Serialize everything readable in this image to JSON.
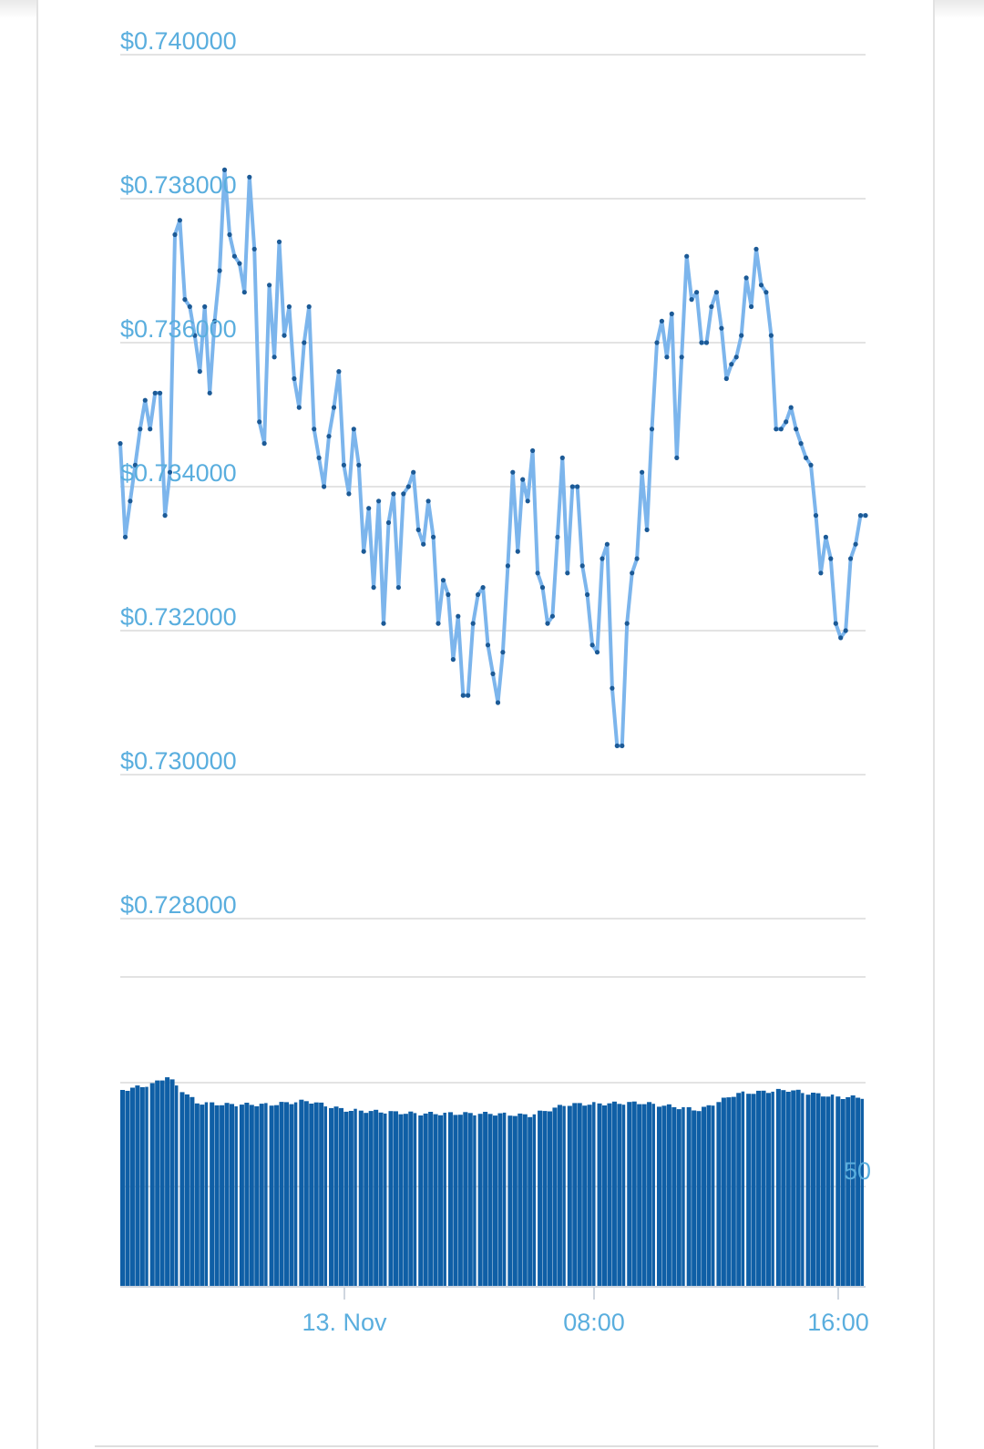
{
  "chart_data": [
    {
      "type": "line",
      "yticks": [
        "$0.740000",
        "$0.738000",
        "$0.736000",
        "$0.734000",
        "$0.732000",
        "$0.730000",
        "$0.728000"
      ],
      "ylim": [
        0.728,
        0.74
      ],
      "grid": true,
      "series": [
        {
          "values": [
            0.7346,
            0.7333,
            0.7338,
            0.7343,
            0.7348,
            0.7352,
            0.7348,
            0.7353,
            0.7353,
            0.7336,
            0.7342,
            0.7375,
            0.7377,
            0.7366,
            0.7365,
            0.7361,
            0.7356,
            0.7365,
            0.7353,
            0.7363,
            0.737,
            0.7384,
            0.7375,
            0.7372,
            0.7371,
            0.7367,
            0.7383,
            0.7373,
            0.7349,
            0.7346,
            0.7368,
            0.7358,
            0.7374,
            0.7361,
            0.7365,
            0.7355,
            0.7351,
            0.736,
            0.7365,
            0.7348,
            0.7344,
            0.734,
            0.7347,
            0.7351,
            0.7356,
            0.7343,
            0.7339,
            0.7348,
            0.7343,
            0.7331,
            0.7337,
            0.7326,
            0.7338,
            0.7321,
            0.7335,
            0.7339,
            0.7326,
            0.7339,
            0.734,
            0.7342,
            0.7334,
            0.7332,
            0.7338,
            0.7333,
            0.7321,
            0.7327,
            0.7325,
            0.7316,
            0.7322,
            0.7311,
            0.7311,
            0.7321,
            0.7325,
            0.7326,
            0.7318,
            0.7314,
            0.731,
            0.7317,
            0.7329,
            0.7342,
            0.7331,
            0.7341,
            0.7338,
            0.7345,
            0.7328,
            0.7326,
            0.7321,
            0.7322,
            0.7333,
            0.7344,
            0.7328,
            0.734,
            0.734,
            0.7329,
            0.7325,
            0.7318,
            0.7317,
            0.733,
            0.7332,
            0.7312,
            0.7304,
            0.7304,
            0.7321,
            0.7328,
            0.733,
            0.7342,
            0.7334,
            0.7348,
            0.736,
            0.7363,
            0.7358,
            0.7364,
            0.7344,
            0.7358,
            0.7372,
            0.7366,
            0.7367,
            0.736,
            0.736,
            0.7365,
            0.7367,
            0.7362,
            0.7355,
            0.7357,
            0.7358,
            0.7361,
            0.7369,
            0.7365,
            0.7373,
            0.7368,
            0.7367,
            0.7361,
            0.7348,
            0.7348,
            0.7349,
            0.7351,
            0.7348,
            0.7346,
            0.7344,
            0.7343,
            0.7336,
            0.7328,
            0.7333,
            0.733,
            0.7321,
            0.7319,
            0.732,
            0.733,
            0.7332,
            0.7336,
            0.7336
          ]
        }
      ]
    },
    {
      "type": "bar",
      "label": "50",
      "xticks": [
        "13. Nov",
        "08:00",
        "16:00"
      ]
    }
  ]
}
